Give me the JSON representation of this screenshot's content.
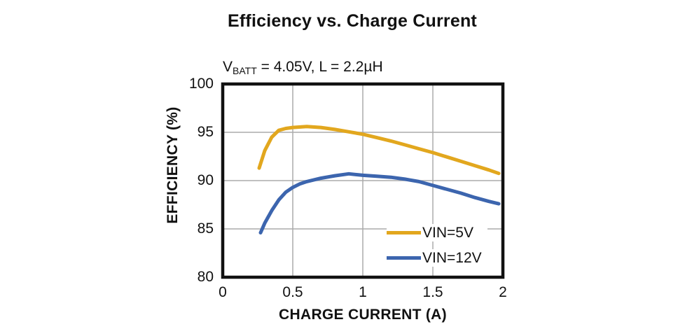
{
  "chart_data": {
    "type": "line",
    "title": "Efficiency vs. Charge Current",
    "subtitle_parts": {
      "prefix": "V",
      "sub": "BATT",
      "rest": " = 4.05V, L = 2.2µH"
    },
    "xlabel": "CHARGE CURRENT (A)",
    "ylabel": "EFFICIENCY (%)",
    "xlim": [
      0,
      2
    ],
    "ylim": [
      80,
      100
    ],
    "xticks": {
      "values": [
        0,
        0.5,
        1,
        1.5,
        2
      ],
      "labels": [
        "0",
        "0.5",
        "1",
        "1.5",
        "2"
      ]
    },
    "yticks": {
      "values": [
        80,
        85,
        90,
        95,
        100
      ],
      "labels": [
        "80",
        "85",
        "90",
        "95",
        "100"
      ]
    },
    "grid": true,
    "legend_position": "inside-bottom-right",
    "style": {
      "grid_color": "#ABABAB",
      "frame_color": "#111111",
      "background": "#FFFFFF",
      "line_width": 5
    },
    "series": [
      {
        "name": "VIN=5V",
        "color": "#E2A71E",
        "points": [
          [
            0.26,
            91.3
          ],
          [
            0.3,
            93.1
          ],
          [
            0.35,
            94.5
          ],
          [
            0.4,
            95.2
          ],
          [
            0.45,
            95.4
          ],
          [
            0.5,
            95.5
          ],
          [
            0.6,
            95.6
          ],
          [
            0.7,
            95.5
          ],
          [
            0.8,
            95.3
          ],
          [
            0.9,
            95.05
          ],
          [
            1.0,
            94.8
          ],
          [
            1.1,
            94.45
          ],
          [
            1.2,
            94.1
          ],
          [
            1.3,
            93.7
          ],
          [
            1.4,
            93.3
          ],
          [
            1.5,
            92.9
          ],
          [
            1.6,
            92.45
          ],
          [
            1.7,
            92.0
          ],
          [
            1.8,
            91.55
          ],
          [
            1.9,
            91.1
          ],
          [
            1.97,
            90.75
          ]
        ]
      },
      {
        "name": "VIN=12V",
        "color": "#3C65AE",
        "points": [
          [
            0.27,
            84.6
          ],
          [
            0.3,
            85.6
          ],
          [
            0.35,
            86.9
          ],
          [
            0.4,
            88.0
          ],
          [
            0.45,
            88.8
          ],
          [
            0.5,
            89.3
          ],
          [
            0.55,
            89.65
          ],
          [
            0.6,
            89.9
          ],
          [
            0.7,
            90.25
          ],
          [
            0.8,
            90.5
          ],
          [
            0.9,
            90.7
          ],
          [
            1.0,
            90.55
          ],
          [
            1.1,
            90.45
          ],
          [
            1.2,
            90.35
          ],
          [
            1.3,
            90.15
          ],
          [
            1.4,
            89.9
          ],
          [
            1.5,
            89.5
          ],
          [
            1.6,
            89.1
          ],
          [
            1.7,
            88.7
          ],
          [
            1.8,
            88.25
          ],
          [
            1.9,
            87.85
          ],
          [
            1.97,
            87.6
          ]
        ]
      }
    ]
  }
}
